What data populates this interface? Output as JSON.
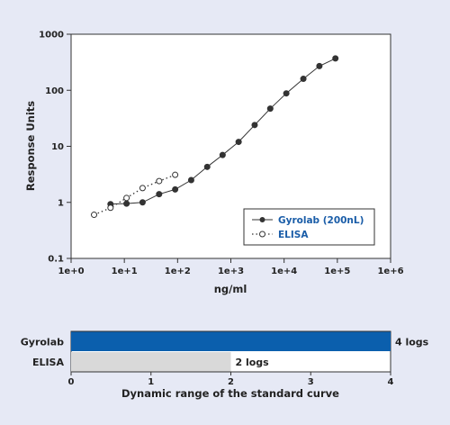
{
  "colors": {
    "background": "#e6e9f5",
    "plot_area": "#ffffff",
    "axis": "#333333",
    "series_marker": "#333333",
    "legend_text": "#1a5da8",
    "bar_gyrolab": "#0b5fad",
    "bar_elisa": "#d9d9d9"
  },
  "chart_data": [
    {
      "type": "scatter",
      "title": "",
      "xlabel": "ng/ml",
      "ylabel": "Response Units",
      "xscale": "log",
      "yscale": "log",
      "xlim": [
        1,
        1000000
      ],
      "ylim": [
        0.1,
        1000
      ],
      "x_ticks": [
        1,
        10,
        100,
        1000,
        10000,
        100000,
        1000000
      ],
      "x_tick_labels": [
        "1e+0",
        "1e+1",
        "1e+2",
        "1e+3",
        "1e+4",
        "1e+5",
        "1e+6"
      ],
      "y_ticks": [
        0.1,
        1,
        10,
        100,
        1000
      ],
      "y_tick_labels": [
        "0.1",
        "1",
        "10",
        "100",
        "1000"
      ],
      "grid": false,
      "legend_position": "bottom-right",
      "series": [
        {
          "name": "Gyrolab (200nL)",
          "style": "solid-line-filled-circle",
          "x": [
            5.5,
            11,
            22,
            45,
            90,
            180,
            360,
            700,
            1400,
            2800,
            5500,
            11000,
            23000,
            46000,
            92000
          ],
          "y": [
            0.93,
            0.95,
            1.0,
            1.4,
            1.7,
            2.5,
            4.3,
            7.0,
            12,
            24,
            47,
            88,
            160,
            270,
            370
          ]
        },
        {
          "name": "ELISA",
          "style": "dotted-line-open-circle",
          "x": [
            2.7,
            5.5,
            11,
            22,
            45,
            90
          ],
          "y": [
            0.6,
            0.8,
            1.2,
            1.8,
            2.4,
            3.1
          ]
        }
      ]
    },
    {
      "type": "bar",
      "orientation": "horizontal",
      "xlabel": "Dynamic range of the standard curve",
      "xlim": [
        0,
        4
      ],
      "x_ticks": [
        0,
        1,
        2,
        3,
        4
      ],
      "x_tick_labels": [
        "0",
        "1",
        "2",
        "3",
        "4"
      ],
      "categories": [
        "Gyrolab",
        "ELISA"
      ],
      "values": [
        4,
        2
      ],
      "value_labels": [
        "4 logs",
        "2 logs"
      ]
    }
  ]
}
